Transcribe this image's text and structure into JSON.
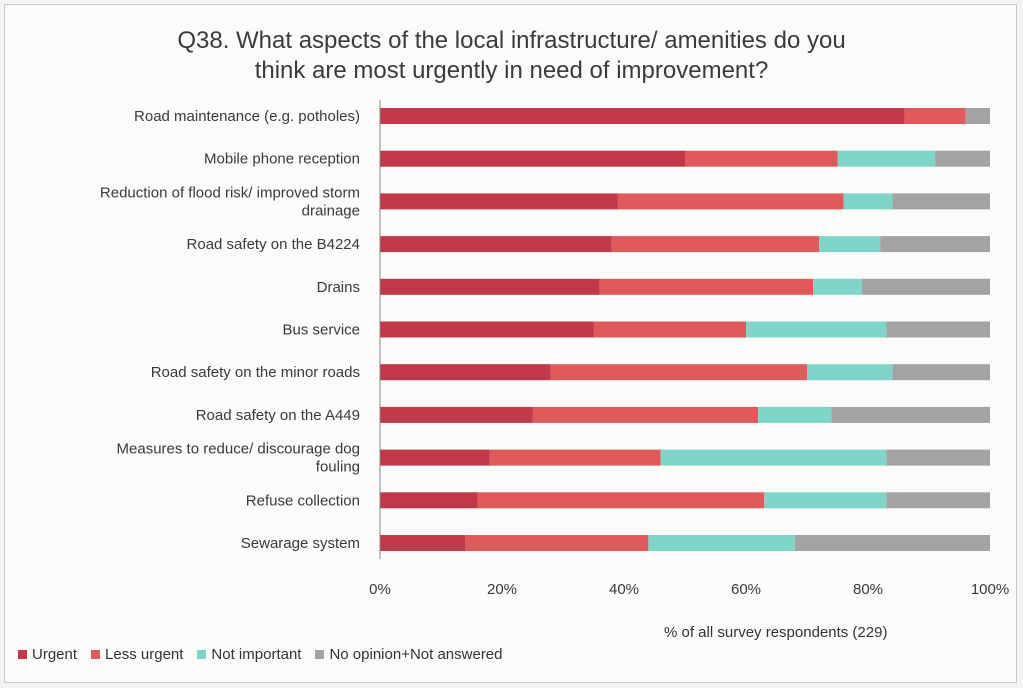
{
  "chart_data": {
    "type": "bar",
    "orientation": "horizontal",
    "stacked": true,
    "title": "Q38. What aspects of the local infrastructure/ amenities do you think are most urgently in need of improvement?",
    "title_lines": [
      "Q38. What aspects of the local infrastructure/ amenities do you",
      "think are most urgently in need of improvement?"
    ],
    "xlabel": "% of all survey respondents (229)",
    "xlim": [
      0,
      100
    ],
    "xticks": [
      "0%",
      "20%",
      "40%",
      "60%",
      "80%",
      "100%"
    ],
    "legend_position": "bottom-left",
    "categories": [
      [
        "Road maintenance (e.g. potholes)"
      ],
      [
        "Mobile phone reception"
      ],
      [
        "Reduction of flood risk/ improved storm",
        "drainage"
      ],
      [
        "Road safety on the B4224"
      ],
      [
        "Drains"
      ],
      [
        "Bus service"
      ],
      [
        "Road safety on the minor roads"
      ],
      [
        "Road safety on the A449"
      ],
      [
        "Measures to reduce/ discourage dog",
        "fouling"
      ],
      [
        "Refuse collection"
      ],
      [
        "Sewarage system"
      ]
    ],
    "series": [
      {
        "name": "Urgent",
        "color": "#c0384a",
        "values": [
          86,
          50,
          39,
          38,
          36,
          35,
          28,
          25,
          18,
          16,
          14
        ]
      },
      {
        "name": "Less urgent",
        "color": "#e05a5c",
        "values": [
          10,
          25,
          37,
          34,
          35,
          25,
          42,
          37,
          28,
          47,
          30
        ]
      },
      {
        "name": "Not important",
        "color": "#7fd6c8",
        "values": [
          0,
          16,
          8,
          10,
          8,
          23,
          14,
          12,
          37,
          20,
          24
        ]
      },
      {
        "name": "No opinion+Not answered",
        "color": "#a3a3a3",
        "values": [
          4,
          9,
          16,
          18,
          21,
          17,
          16,
          26,
          17,
          17,
          32
        ]
      }
    ]
  }
}
